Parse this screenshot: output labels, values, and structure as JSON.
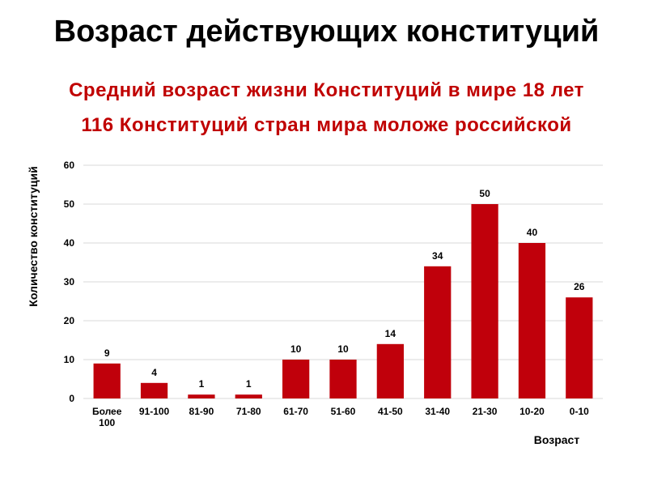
{
  "title": "Возраст действующих конституций",
  "subtitle_lines": [
    "Средний возраст жизни Конституций в мире 18 лет",
    "116 Конституций стран мира моложе российской"
  ],
  "colors": {
    "bar": "#c0000b",
    "subtitle": "#c00000",
    "grid": "#d9d9d9"
  },
  "chart_data": {
    "type": "bar",
    "categories": [
      [
        "Более",
        "100"
      ],
      [
        "91-100"
      ],
      [
        "81-90"
      ],
      [
        "71-80"
      ],
      [
        "61-70"
      ],
      [
        "51-60"
      ],
      [
        "41-50"
      ],
      [
        "31-40"
      ],
      [
        "21-30"
      ],
      [
        "10-20"
      ],
      [
        "0-10"
      ]
    ],
    "values": [
      9,
      4,
      1,
      1,
      10,
      10,
      14,
      34,
      50,
      40,
      26
    ],
    "xlabel": "Возраст",
    "ylabel": "Количество конституций",
    "ylim": [
      0,
      60
    ],
    "yticks": [
      0,
      10,
      20,
      30,
      40,
      50,
      60
    ],
    "grid": true,
    "data_labels": true
  }
}
